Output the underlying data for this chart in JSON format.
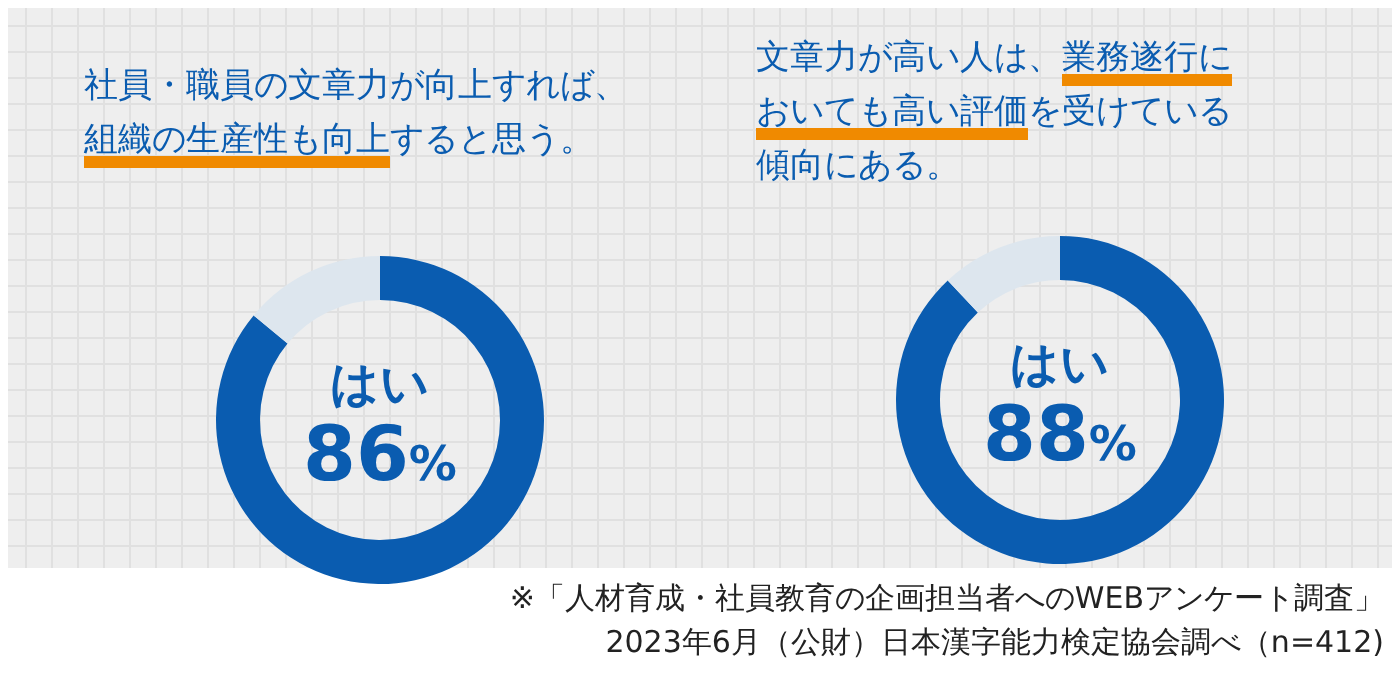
{
  "chart_data": [
    {
      "type": "donut",
      "title": "社員・職員の文章力が向上すれば、組織の生産性も向上すると思う。",
      "categories": [
        "はい",
        null
      ],
      "values": [
        86,
        14
      ],
      "colors": [
        "#0a5cb0",
        "#dde6ee"
      ],
      "value_labels": [
        "86%",
        null
      ]
    },
    {
      "type": "donut",
      "title": "文章力が高い人は、業務遂行においても高い評価を受けている傾向にある。",
      "categories": [
        "はい",
        null
      ],
      "values": [
        88,
        12
      ],
      "colors": [
        "#0a5cb0",
        "#dde6ee"
      ],
      "value_labels": [
        "88%",
        null
      ],
      "annotations": [
        "※「人材育成・社員教育の企画担当者へのWEBアンケート調査」",
        "2023年6月（公財）日本漢字能力検定協会調べ（n=412)"
      ]
    }
  ]
}
